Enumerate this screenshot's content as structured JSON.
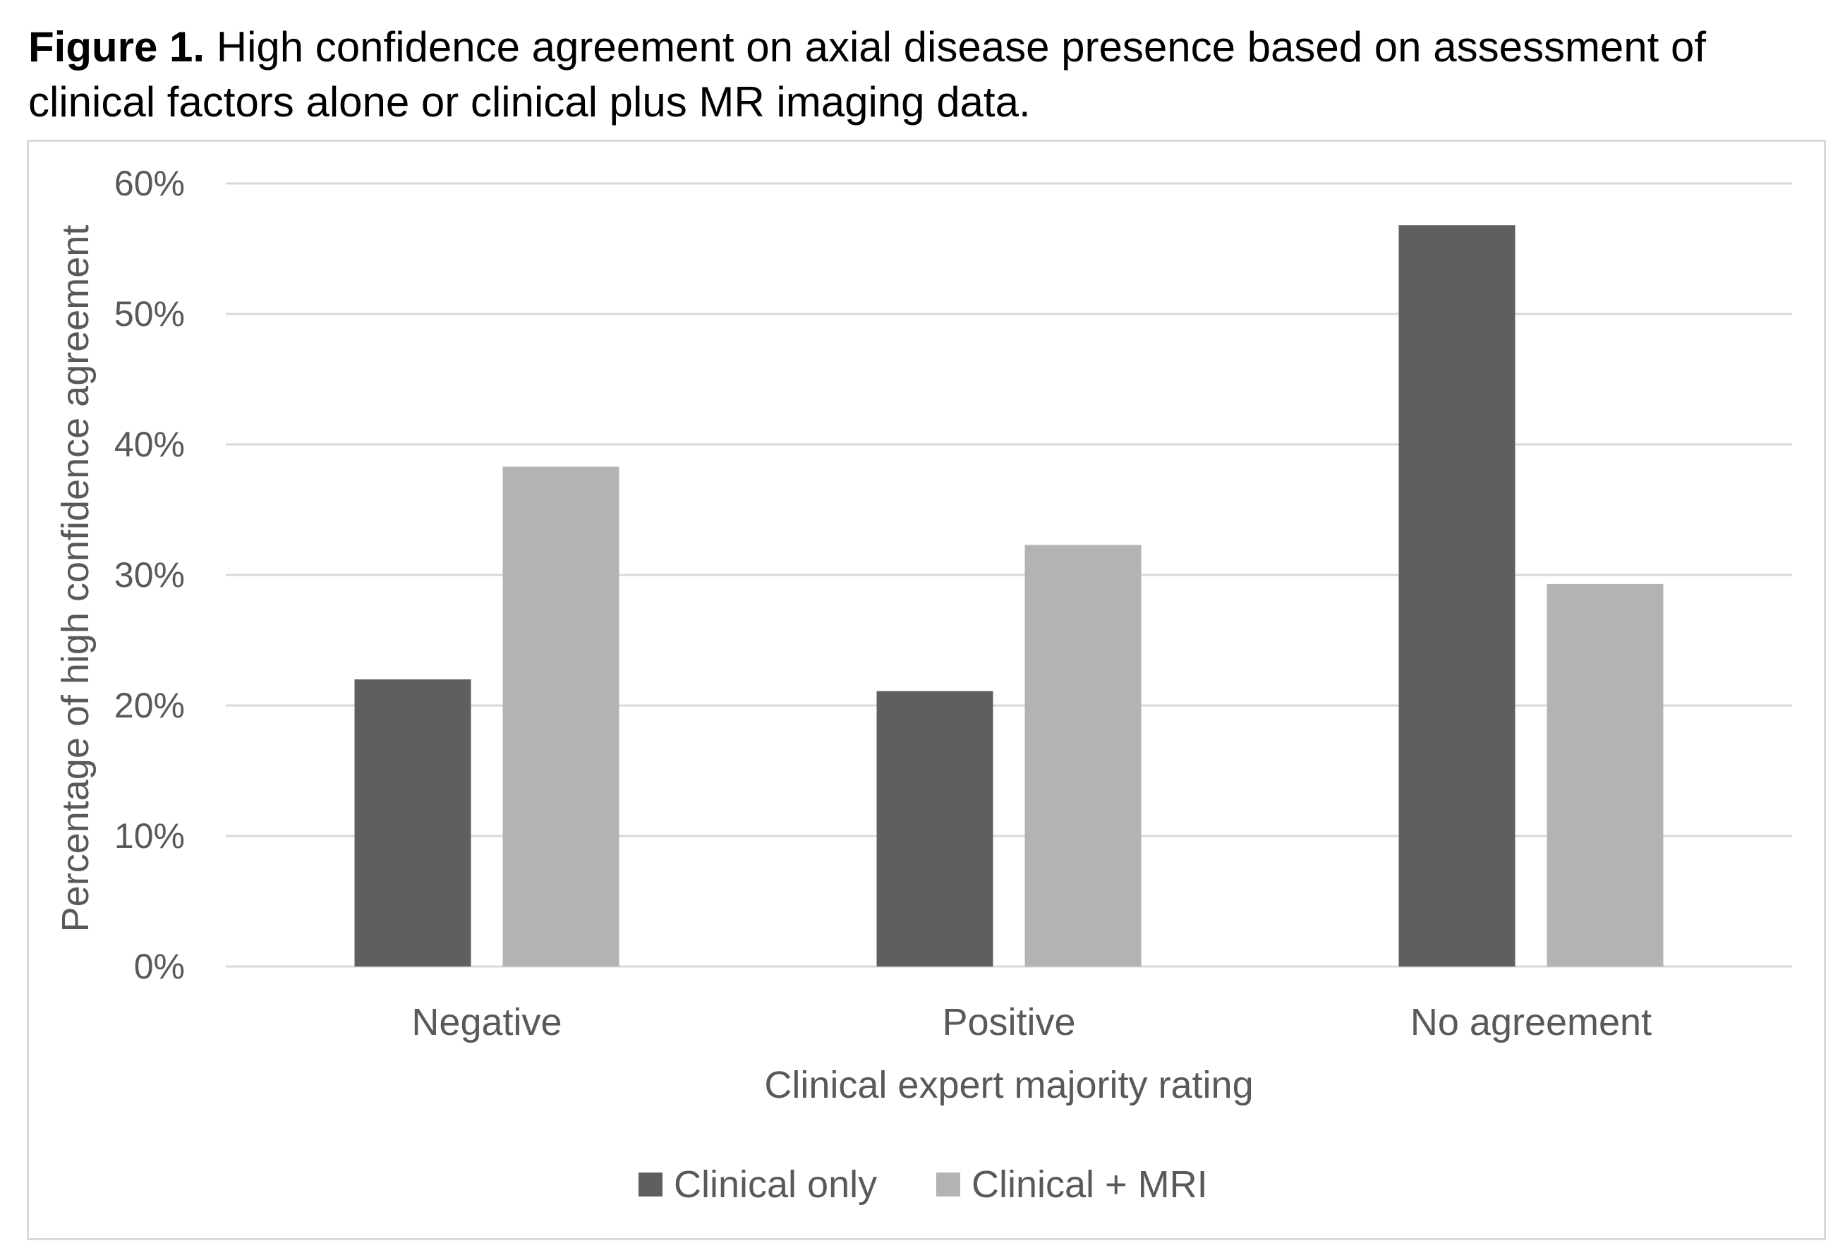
{
  "caption": {
    "label": "Figure 1.",
    "text": " High confidence agreement on axial disease presence based on assessment of clinical factors alone or clinical plus MR imaging data."
  },
  "chart_data": {
    "type": "bar",
    "categories": [
      "Negative",
      "Positive",
      "No agreement"
    ],
    "series": [
      {
        "name": "Clinical only",
        "color": "#5f5f5f",
        "values": [
          22.0,
          21.1,
          56.8
        ]
      },
      {
        "name": "Clinical + MRI",
        "color": "#b3b3b3",
        "values": [
          38.3,
          32.3,
          29.3
        ]
      }
    ],
    "xlabel": "Clinical expert majority rating",
    "ylabel": "Percentage of high confidence agreement",
    "ylim": [
      0,
      60
    ],
    "yticks": [
      0,
      10,
      20,
      30,
      40,
      50,
      60
    ],
    "ytick_suffix": "%",
    "grid": true,
    "legend_position": "bottom"
  }
}
